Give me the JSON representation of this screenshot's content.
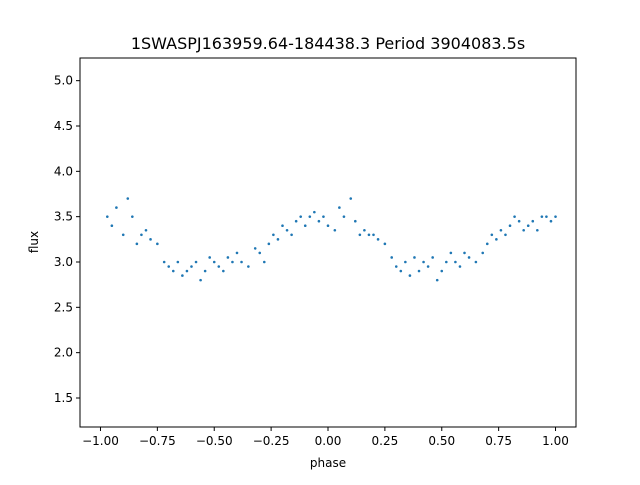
{
  "chart_data": {
    "type": "scatter",
    "title": "1SWASPJ163959.64-184438.3 Period 3904083.5s",
    "xlabel": "phase",
    "ylabel": "flux",
    "xlim": [
      -1.09,
      1.09
    ],
    "ylim": [
      1.18,
      5.25
    ],
    "xticks": [
      -1.0,
      -0.75,
      -0.5,
      -0.25,
      0.0,
      0.25,
      0.5,
      0.75,
      1.0
    ],
    "xtick_labels": [
      "−1.00",
      "−0.75",
      "−0.50",
      "−0.25",
      "0.00",
      "0.25",
      "0.50",
      "0.75",
      "1.00"
    ],
    "yticks": [
      1.5,
      2.0,
      2.5,
      3.0,
      3.5,
      4.0,
      4.5,
      5.0
    ],
    "ytick_labels": [
      "1.5",
      "2.0",
      "2.5",
      "3.0",
      "3.5",
      "4.0",
      "4.5",
      "5.0"
    ],
    "grid": false,
    "marker_color": "#1f77b4",
    "series": [
      {
        "x": [
          -0.97,
          -0.95,
          -0.93,
          -0.9,
          -0.88,
          -0.86,
          -0.84,
          -0.82,
          -0.8,
          -0.78,
          -0.75,
          -0.72,
          -0.7,
          -0.68,
          -0.66,
          -0.64,
          -0.62,
          -0.6,
          -0.58,
          -0.56,
          -0.54,
          -0.52,
          -0.5,
          -0.48,
          -0.46,
          -0.44,
          -0.42,
          -0.4,
          -0.38,
          -0.35,
          -0.32,
          -0.3,
          -0.28,
          -0.26,
          -0.24,
          -0.22,
          -0.2,
          -0.18,
          -0.16,
          -0.14,
          -0.12,
          -0.1,
          -0.08,
          -0.06,
          -0.04,
          -0.02,
          0.0,
          0.03,
          0.05,
          0.07,
          0.1,
          0.12,
          0.14,
          0.16,
          0.18,
          0.2,
          0.22,
          0.25,
          0.28,
          0.3,
          0.32,
          0.34,
          0.36,
          0.38,
          0.4,
          0.42,
          0.44,
          0.46,
          0.48,
          0.5,
          0.52,
          0.54,
          0.56,
          0.58,
          0.6,
          0.62,
          0.65,
          0.68,
          0.7,
          0.72,
          0.74,
          0.76,
          0.78,
          0.8,
          0.82,
          0.84,
          0.86,
          0.88,
          0.9,
          0.92,
          0.94,
          0.96,
          0.98,
          1.0
        ],
        "y": [
          3.5,
          3.4,
          3.6,
          3.3,
          3.7,
          3.5,
          3.2,
          3.3,
          3.35,
          3.25,
          3.2,
          3.0,
          2.95,
          2.9,
          3.0,
          2.85,
          2.9,
          2.95,
          3.0,
          2.8,
          2.9,
          3.05,
          3.0,
          2.95,
          2.9,
          3.05,
          3.0,
          3.1,
          3.0,
          2.95,
          3.15,
          3.1,
          3.0,
          3.2,
          3.3,
          3.25,
          3.4,
          3.35,
          3.3,
          3.45,
          3.5,
          3.4,
          3.5,
          3.55,
          3.45,
          3.5,
          3.4,
          3.35,
          3.6,
          3.5,
          3.7,
          3.45,
          3.3,
          3.35,
          3.3,
          3.3,
          3.25,
          3.2,
          3.05,
          2.95,
          2.9,
          3.0,
          2.85,
          3.05,
          2.9,
          3.0,
          2.95,
          3.05,
          2.8,
          2.9,
          3.0,
          3.1,
          3.0,
          2.95,
          3.1,
          3.05,
          3.0,
          3.1,
          3.2,
          3.3,
          3.25,
          3.35,
          3.3,
          3.4,
          3.5,
          3.45,
          3.35,
          3.4,
          3.45,
          3.35,
          3.5,
          3.5,
          3.45,
          3.5
        ]
      }
    ]
  }
}
